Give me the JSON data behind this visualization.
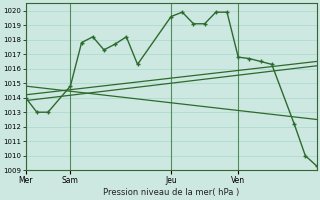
{
  "bg_color": "#cde8e0",
  "grid_color": "#a8d8cc",
  "line_color": "#2d6a2d",
  "ylim": [
    1009,
    1020.5
  ],
  "yticks": [
    1009,
    1010,
    1011,
    1012,
    1013,
    1014,
    1015,
    1016,
    1017,
    1018,
    1019,
    1020
  ],
  "xlabel": "Pression niveau de la mer( hPa )",
  "xtick_labels": [
    "Mer",
    "Sam",
    "Jeu",
    "Ven"
  ],
  "xtick_positions": [
    0,
    8,
    26,
    38
  ],
  "xlim": [
    0,
    52
  ],
  "vline_positions": [
    0,
    8,
    26,
    38
  ],
  "main_x": [
    0,
    2,
    4,
    8,
    10,
    12,
    14,
    16,
    18,
    20,
    26,
    28,
    30,
    32,
    34,
    36,
    38,
    40,
    42,
    44,
    48,
    50,
    52
  ],
  "main_y": [
    1014.0,
    1013.0,
    1013.0,
    1014.8,
    1017.8,
    1018.2,
    1017.3,
    1017.7,
    1018.2,
    1016.3,
    1019.6,
    1019.9,
    1019.1,
    1019.1,
    1019.9,
    1019.9,
    1016.8,
    1016.7,
    1016.5,
    1016.3,
    1012.2,
    1010.0,
    1009.3
  ],
  "trend1_x": [
    0,
    52
  ],
  "trend1_y": [
    1014.2,
    1016.5
  ],
  "trend2_x": [
    0,
    52
  ],
  "trend2_y": [
    1013.8,
    1016.2
  ],
  "trend3_x": [
    0,
    52
  ],
  "trend3_y": [
    1014.8,
    1012.5
  ]
}
